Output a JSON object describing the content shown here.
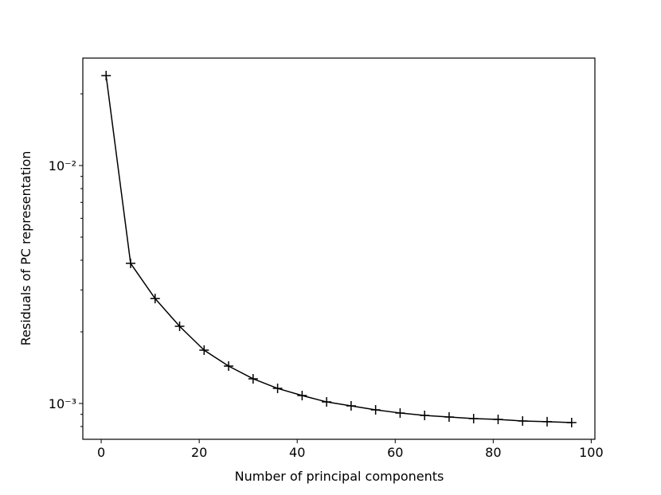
{
  "chart_data": {
    "type": "line",
    "x_label": "Number of principal components",
    "y_label": "Residuals of PC representation",
    "x": [
      1,
      6,
      11,
      16,
      21,
      26,
      31,
      36,
      41,
      46,
      51,
      56,
      61,
      66,
      71,
      76,
      81,
      86,
      91,
      96
    ],
    "series": [
      {
        "color": "#000000",
        "marker": "+",
        "values": [
          0.02388,
          0.00388,
          0.00276,
          0.00211,
          0.001675,
          0.001436,
          0.00127,
          0.001157,
          0.00108,
          0.001015,
          0.000977,
          0.00094,
          0.000912,
          0.000891,
          0.000877,
          0.000864,
          0.000857,
          0.000844,
          0.000838,
          0.000831
        ]
      }
    ],
    "xlim": [
      -3.75,
      100.75
    ],
    "xticks": [
      0,
      20,
      40,
      60,
      80,
      100
    ],
    "ylim": [
      0.000707,
      0.02828
    ],
    "ylog": true,
    "yticks": [
      {
        "value": 0.01,
        "label": "10⁻²"
      },
      {
        "value": 0.001,
        "label": "10⁻³"
      }
    ],
    "yminorticks": [
      0.02,
      0.009,
      0.008,
      0.007,
      0.006,
      0.005,
      0.004,
      0.003,
      0.002,
      0.0009,
      0.0008
    ],
    "grid": false
  }
}
